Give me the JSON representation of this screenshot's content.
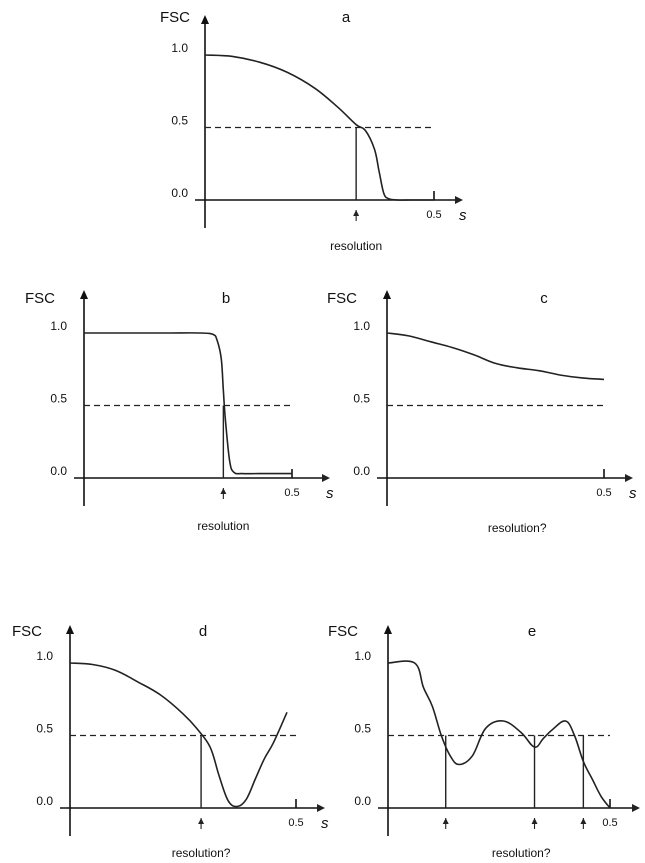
{
  "chart_data": [
    {
      "type": "line",
      "title": "a",
      "ylabel": "FSC",
      "xlabel": "s",
      "xlim": [
        0,
        0.55
      ],
      "ylim": [
        0,
        1.1
      ],
      "x_ticks": [
        {
          "value": 0.5,
          "label": "0.5"
        }
      ],
      "y_ticks": [
        {
          "value": 0.0,
          "label": "0.0"
        },
        {
          "value": 0.5,
          "label": "0.5"
        },
        {
          "value": 1.0,
          "label": "1.0"
        }
      ],
      "threshold": 0.5,
      "series": [
        {
          "x": [
            0.0,
            0.06,
            0.12,
            0.18,
            0.24,
            0.29,
            0.33,
            0.35,
            0.37,
            0.38,
            0.39,
            0.4,
            0.42,
            0.45,
            0.5
          ],
          "y": [
            1.0,
            0.99,
            0.95,
            0.88,
            0.77,
            0.64,
            0.52,
            0.48,
            0.35,
            0.2,
            0.05,
            0.01,
            0.0,
            0.0,
            0.0
          ]
        }
      ],
      "markers": [
        0.33
      ],
      "annotation": "resolution"
    },
    {
      "type": "line",
      "title": "b",
      "ylabel": "FSC",
      "xlabel": "s",
      "xlim": [
        0,
        0.55
      ],
      "ylim": [
        0,
        1.1
      ],
      "x_ticks": [
        {
          "value": 0.5,
          "label": "0.5"
        }
      ],
      "y_ticks": [
        {
          "value": 0.0,
          "label": "0.0"
        },
        {
          "value": 0.5,
          "label": "0.5"
        },
        {
          "value": 1.0,
          "label": "1.0"
        }
      ],
      "threshold": 0.5,
      "series": [
        {
          "x": [
            0.0,
            0.1,
            0.2,
            0.28,
            0.31,
            0.32,
            0.33,
            0.335,
            0.34,
            0.35,
            0.36,
            0.38,
            0.42,
            0.5
          ],
          "y": [
            1.0,
            1.0,
            1.0,
            1.0,
            0.99,
            0.95,
            0.82,
            0.6,
            0.4,
            0.12,
            0.04,
            0.03,
            0.03,
            0.03
          ]
        }
      ],
      "markers": [
        0.335
      ],
      "annotation": "resolution"
    },
    {
      "type": "line",
      "title": "c",
      "ylabel": "FSC",
      "xlabel": "s",
      "xlim": [
        0,
        0.55
      ],
      "ylim": [
        0,
        1.1
      ],
      "x_ticks": [
        {
          "value": 0.5,
          "label": "0.5"
        }
      ],
      "y_ticks": [
        {
          "value": 0.0,
          "label": "0.0"
        },
        {
          "value": 0.5,
          "label": "0.5"
        },
        {
          "value": 1.0,
          "label": "1.0"
        }
      ],
      "threshold": 0.5,
      "series": [
        {
          "x": [
            0.0,
            0.05,
            0.1,
            0.15,
            0.2,
            0.25,
            0.3,
            0.35,
            0.4,
            0.45,
            0.5
          ],
          "y": [
            1.0,
            0.98,
            0.94,
            0.9,
            0.85,
            0.79,
            0.76,
            0.74,
            0.71,
            0.69,
            0.68
          ]
        }
      ],
      "markers": [],
      "annotation": "resolution?"
    },
    {
      "type": "line",
      "title": "d",
      "ylabel": "FSC",
      "xlabel": "s",
      "xlim": [
        0,
        0.55
      ],
      "ylim": [
        0,
        1.1
      ],
      "x_ticks": [
        {
          "value": 0.5,
          "label": "0.5"
        }
      ],
      "y_ticks": [
        {
          "value": 0.0,
          "label": "0.0"
        },
        {
          "value": 0.5,
          "label": "0.5"
        },
        {
          "value": 1.0,
          "label": "1.0"
        }
      ],
      "threshold": 0.5,
      "series": [
        {
          "x": [
            0.0,
            0.05,
            0.1,
            0.15,
            0.2,
            0.25,
            0.28,
            0.31,
            0.33,
            0.35,
            0.37,
            0.39,
            0.41,
            0.43,
            0.45,
            0.48
          ],
          "y": [
            1.0,
            0.99,
            0.95,
            0.87,
            0.78,
            0.65,
            0.55,
            0.42,
            0.22,
            0.05,
            0.01,
            0.06,
            0.2,
            0.34,
            0.45,
            0.66
          ]
        }
      ],
      "markers": [
        0.29
      ],
      "annotation": "resolution?"
    },
    {
      "type": "line",
      "title": "e",
      "ylabel": "FSC",
      "xlabel": "",
      "xlim": [
        0,
        0.55
      ],
      "ylim": [
        0,
        1.1
      ],
      "x_ticks": [
        {
          "value": 0.5,
          "label": "0.5"
        }
      ],
      "y_ticks": [
        {
          "value": 0.0,
          "label": "0.0"
        },
        {
          "value": 0.5,
          "label": "0.5"
        },
        {
          "value": 1.0,
          "label": "1.0"
        }
      ],
      "threshold": 0.5,
      "series": [
        {
          "x": [
            0.0,
            0.06,
            0.08,
            0.1,
            0.12,
            0.14,
            0.16,
            0.19,
            0.22,
            0.26,
            0.3,
            0.33,
            0.35,
            0.37,
            0.4,
            0.42,
            0.44,
            0.46,
            0.48,
            0.5
          ],
          "y": [
            1.0,
            1.0,
            0.83,
            0.7,
            0.5,
            0.36,
            0.3,
            0.36,
            0.55,
            0.6,
            0.52,
            0.42,
            0.48,
            0.54,
            0.6,
            0.5,
            0.32,
            0.2,
            0.08,
            0.0
          ]
        }
      ],
      "markers": [
        0.13,
        0.33,
        0.44
      ],
      "annotation": "resolution?"
    }
  ]
}
